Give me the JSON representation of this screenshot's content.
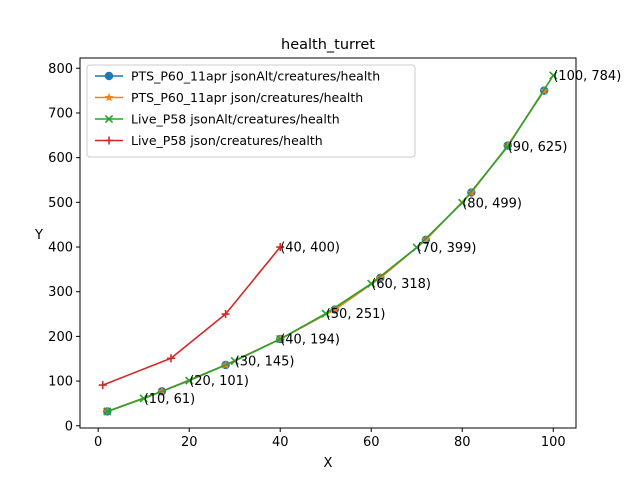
{
  "chart_data": {
    "type": "line",
    "title": "health_turret",
    "xlabel": "X",
    "ylabel": "Y",
    "xlim": [
      -4,
      105
    ],
    "ylim": [
      -5,
      823
    ],
    "xticks": [
      0,
      20,
      40,
      60,
      80,
      100
    ],
    "yticks": [
      0,
      100,
      200,
      300,
      400,
      500,
      600,
      700,
      800
    ],
    "grid": false,
    "legend_position": "upper-left",
    "series": [
      {
        "name": "PTS_P60_11apr jsonAlt/creatures/health",
        "color": "#1f77b4",
        "marker": "circle",
        "x": [
          2,
          14,
          28,
          40,
          52,
          62,
          72,
          82,
          90,
          98
        ],
        "y": [
          32,
          77,
          136,
          194,
          260,
          331,
          416,
          522,
          627,
          750
        ]
      },
      {
        "name": "PTS_P60_11apr json/creatures/health",
        "color": "#ff7f0e",
        "marker": "star",
        "x": [
          2,
          14,
          28,
          40,
          52,
          62,
          72,
          82,
          90,
          98
        ],
        "y": [
          32,
          77,
          136,
          194,
          260,
          331,
          416,
          522,
          627,
          750
        ]
      },
      {
        "name": "Live_P58 jsonAlt/creatures/health",
        "color": "#2ca02c",
        "marker": "x",
        "x": [
          2,
          10,
          20,
          30,
          40,
          50,
          60,
          70,
          80,
          90,
          100
        ],
        "y": [
          32,
          61,
          101,
          145,
          194,
          251,
          318,
          399,
          499,
          625,
          784
        ]
      },
      {
        "name": "Live_P58 json/creatures/health",
        "color": "#d62728",
        "marker": "plus",
        "x": [
          1,
          16,
          28,
          40
        ],
        "y": [
          91,
          151,
          250,
          400
        ]
      }
    ],
    "annotations": [
      {
        "text": "(10, 61)",
        "x": 10,
        "y": 61
      },
      {
        "text": "(20, 101)",
        "x": 20,
        "y": 101
      },
      {
        "text": "(30, 145)",
        "x": 30,
        "y": 145
      },
      {
        "text": "(40, 194)",
        "x": 40,
        "y": 194
      },
      {
        "text": "(50, 251)",
        "x": 50,
        "y": 251
      },
      {
        "text": "(60, 318)",
        "x": 60,
        "y": 318
      },
      {
        "text": "(70, 399)",
        "x": 70,
        "y": 399
      },
      {
        "text": "(80, 499)",
        "x": 80,
        "y": 499
      },
      {
        "text": "(90, 625)",
        "x": 90,
        "y": 625
      },
      {
        "text": "(100, 784)",
        "x": 100,
        "y": 784
      },
      {
        "text": "(40, 400)",
        "x": 40,
        "y": 400
      }
    ]
  }
}
